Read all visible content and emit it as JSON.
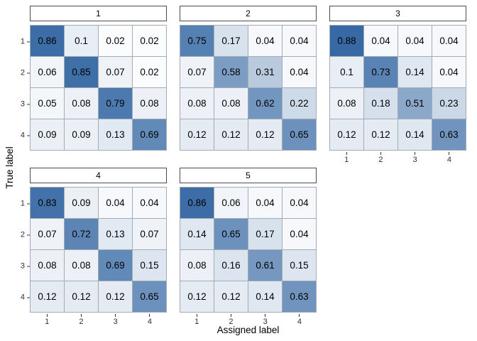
{
  "chart_data": {
    "type": "heatmap",
    "description": "Faceted confusion matrices, one per fold, values are proportions filled white-to-blue",
    "xlabel": "Assigned label",
    "ylabel": "True label",
    "x_ticks": [
      "1",
      "2",
      "3",
      "4"
    ],
    "y_ticks": [
      "1",
      "2",
      "3",
      "4"
    ],
    "facets": [
      {
        "label": "1",
        "matrix": [
          [
            0.86,
            0.1,
            0.02,
            0.02
          ],
          [
            0.06,
            0.85,
            0.07,
            0.02
          ],
          [
            0.05,
            0.08,
            0.79,
            0.08
          ],
          [
            0.09,
            0.09,
            0.13,
            0.69
          ]
        ]
      },
      {
        "label": "2",
        "matrix": [
          [
            0.75,
            0.17,
            0.04,
            0.04
          ],
          [
            0.07,
            0.58,
            0.31,
            0.04
          ],
          [
            0.08,
            0.08,
            0.62,
            0.22
          ],
          [
            0.12,
            0.12,
            0.12,
            0.65
          ]
        ]
      },
      {
        "label": "3",
        "matrix": [
          [
            0.88,
            0.04,
            0.04,
            0.04
          ],
          [
            0.1,
            0.73,
            0.14,
            0.04
          ],
          [
            0.08,
            0.18,
            0.51,
            0.23
          ],
          [
            0.12,
            0.12,
            0.14,
            0.63
          ]
        ]
      },
      {
        "label": "4",
        "matrix": [
          [
            0.83,
            0.09,
            0.04,
            0.04
          ],
          [
            0.07,
            0.72,
            0.13,
            0.07
          ],
          [
            0.08,
            0.08,
            0.69,
            0.15
          ],
          [
            0.12,
            0.12,
            0.12,
            0.65
          ]
        ]
      },
      {
        "label": "5",
        "matrix": [
          [
            0.86,
            0.06,
            0.04,
            0.04
          ],
          [
            0.14,
            0.65,
            0.17,
            0.04
          ],
          [
            0.08,
            0.16,
            0.61,
            0.15
          ],
          [
            0.12,
            0.12,
            0.14,
            0.63
          ]
        ]
      }
    ],
    "colors": {
      "fill_low": "#ffffff",
      "fill_high": "#1c5598",
      "grid_line": "#a3abb4",
      "strip_border": "#4d4d4d",
      "tick": "#333333",
      "cell_text": "#000000"
    },
    "fill_range": [
      0,
      1
    ],
    "legend": "none",
    "grid": "off"
  }
}
